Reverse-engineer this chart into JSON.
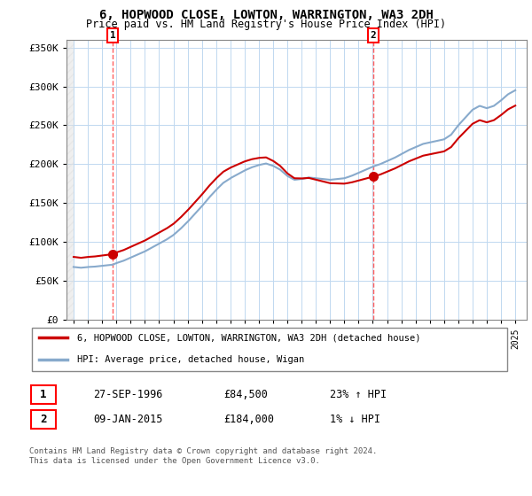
{
  "title": "6, HOPWOOD CLOSE, LOWTON, WARRINGTON, WA3 2DH",
  "subtitle": "Price paid vs. HM Land Registry's House Price Index (HPI)",
  "ylabel_ticks": [
    "£0",
    "£50K",
    "£100K",
    "£150K",
    "£200K",
    "£250K",
    "£300K",
    "£350K"
  ],
  "ylim": [
    0,
    360000
  ],
  "yticks": [
    0,
    50000,
    100000,
    150000,
    200000,
    250000,
    300000,
    350000
  ],
  "sale1_date_num": 1996.74,
  "sale1_price": 84500,
  "sale2_date_num": 2015.03,
  "sale2_price": 184000,
  "red_line_color": "#cc0000",
  "blue_line_color": "#88aacc",
  "legend_label_red": "6, HOPWOOD CLOSE, LOWTON, WARRINGTON, WA3 2DH (detached house)",
  "legend_label_blue": "HPI: Average price, detached house, Wigan",
  "table_row1": [
    "1",
    "27-SEP-1996",
    "£84,500",
    "23% ↑ HPI"
  ],
  "table_row2": [
    "2",
    "09-JAN-2015",
    "£184,000",
    "1% ↓ HPI"
  ],
  "footer": "Contains HM Land Registry data © Crown copyright and database right 2024.\nThis data is licensed under the Open Government Licence v3.0.",
  "hatch_end_year": 1994.0,
  "xlim_left": 1993.5,
  "xlim_right": 2025.8,
  "years_hpi": [
    1994,
    1994.25,
    1994.5,
    1994.75,
    1995,
    1995.25,
    1995.5,
    1995.75,
    1996,
    1996.25,
    1996.5,
    1996.75,
    1997,
    1997.5,
    1998,
    1998.5,
    1999,
    1999.5,
    2000,
    2000.5,
    2001,
    2001.5,
    2002,
    2002.5,
    2003,
    2003.5,
    2004,
    2004.5,
    2005,
    2005.5,
    2006,
    2006.5,
    2007,
    2007.5,
    2008,
    2008.5,
    2009,
    2009.5,
    2010,
    2010.5,
    2011,
    2011.5,
    2012,
    2012.5,
    2013,
    2013.5,
    2014,
    2014.5,
    2015,
    2015.5,
    2016,
    2016.5,
    2017,
    2017.5,
    2018,
    2018.5,
    2019,
    2019.5,
    2020,
    2020.5,
    2021,
    2021.5,
    2022,
    2022.5,
    2023,
    2023.5,
    2024,
    2024.5,
    2025
  ],
  "hpi_values": [
    68000,
    67500,
    67000,
    67500,
    68000,
    68200,
    68500,
    69000,
    69500,
    70000,
    70500,
    71000,
    73000,
    76000,
    80000,
    84000,
    88000,
    93000,
    98000,
    103000,
    109000,
    117000,
    126000,
    136000,
    146000,
    157000,
    167000,
    176000,
    182000,
    187000,
    192000,
    196000,
    199000,
    201000,
    198000,
    193000,
    185000,
    180000,
    181000,
    183000,
    182000,
    181000,
    180000,
    181000,
    182000,
    185000,
    189000,
    193000,
    197000,
    200000,
    204000,
    208000,
    213000,
    218000,
    222000,
    226000,
    228000,
    230000,
    232000,
    238000,
    250000,
    260000,
    270000,
    275000,
    272000,
    275000,
    282000,
    290000,
    295000
  ]
}
